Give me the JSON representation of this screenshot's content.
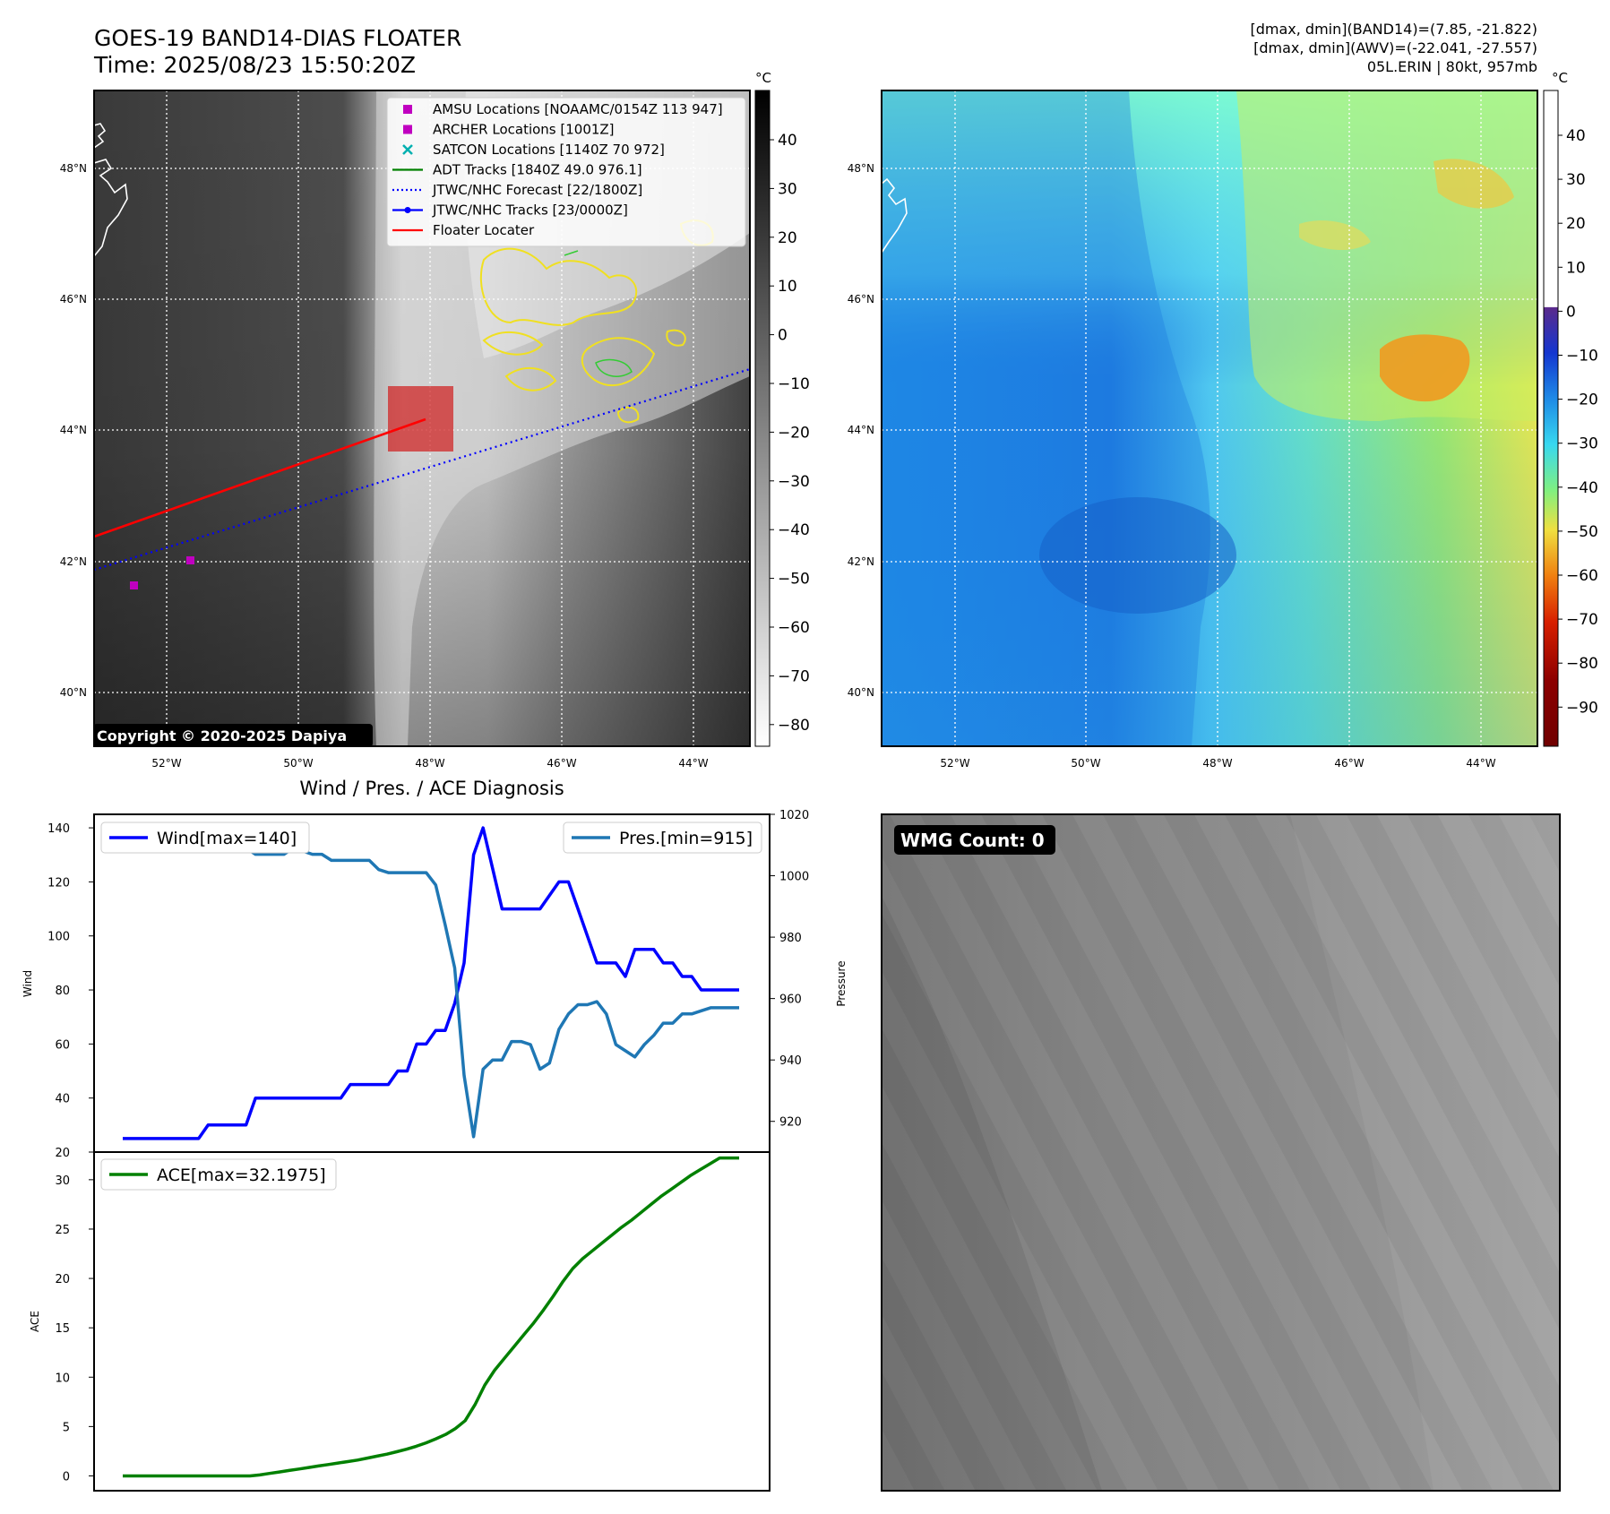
{
  "header": {
    "title_line1": "GOES-19 BAND14-DIAS FLOATER",
    "title_line2": "Time: 2025/08/23 15:50:20Z",
    "info_line1": "[dmax, dmin](BAND14)=(7.85, -21.822)",
    "info_line2": "[dmax, dmin](AWV)=(-22.041, -27.557)",
    "info_line3": "05L.ERIN | 80kt, 957mb"
  },
  "map_panel": {
    "lat_labels": [
      "48°N",
      "46°N",
      "44°N",
      "42°N",
      "40°N"
    ],
    "lon_labels": [
      "52°W",
      "50°W",
      "48°W",
      "46°W",
      "44°W"
    ],
    "copyright": "Copyright © 2020-2025 Dapiya",
    "legend": [
      {
        "label": "AMSU Locations [NOAAMC/0154Z 113 947]",
        "color": "#c000c0",
        "marker": "square"
      },
      {
        "label": "ARCHER Locations [1001Z]",
        "color": "#c000c0",
        "marker": "square"
      },
      {
        "label": "SATCON Locations [1140Z 70 972]",
        "color": "#00b0b0",
        "marker": "x"
      },
      {
        "label": "ADT Tracks [1840Z 49.0 976.1]",
        "color": "#008000",
        "marker": "line"
      },
      {
        "label": "JTWC/NHC Forecast [22/1800Z]",
        "color": "#0000ff",
        "marker": "dotted"
      },
      {
        "label": "JTWC/NHC Tracks [23/0000Z]",
        "color": "#0000ff",
        "marker": "line-dot"
      },
      {
        "label": "Floater Locater",
        "color": "#ff0000",
        "marker": "line"
      }
    ],
    "colorbar_unit": "°C",
    "colorbar_ticks": [
      "40",
      "30",
      "20",
      "10",
      "0",
      "−10",
      "−20",
      "−30",
      "−40",
      "−50",
      "−60",
      "−70",
      "−80"
    ]
  },
  "wv_panel": {
    "lat_labels": [
      "48°N",
      "46°N",
      "44°N",
      "42°N",
      "40°N"
    ],
    "lon_labels": [
      "52°W",
      "50°W",
      "48°W",
      "46°W",
      "44°W"
    ],
    "colorbar_unit": "°C",
    "colorbar_ticks": [
      "40",
      "30",
      "20",
      "10",
      "0",
      "−10",
      "−20",
      "−30",
      "−40",
      "−50",
      "−60",
      "−70",
      "−80",
      "−90"
    ]
  },
  "wmg_panel": {
    "badge": "WMG Count: 0"
  },
  "colors": {
    "wind": "#0000ff",
    "pressure": "#1f77b4",
    "ace": "#008000",
    "floater": "#ff0000"
  },
  "chart_data": [
    {
      "type": "line",
      "title": "Wind / Pres. / ACE Diagnosis",
      "ylabel": "Wind",
      "y2label": "Pressure",
      "ylim": [
        20,
        145
      ],
      "y2lim": [
        910,
        1020
      ],
      "yticks": [
        20,
        40,
        60,
        80,
        100,
        120,
        140
      ],
      "y2ticks": [
        920,
        940,
        960,
        980,
        1000,
        1020
      ],
      "grid": false,
      "legend_left": "top-left",
      "legend_right": "top-right",
      "series": [
        {
          "name": "Wind[max=140]",
          "axis": "left",
          "values": [
            25,
            25,
            25,
            25,
            25,
            25,
            25,
            25,
            25,
            30,
            30,
            30,
            30,
            30,
            40,
            40,
            40,
            40,
            40,
            40,
            40,
            40,
            40,
            40,
            45,
            45,
            45,
            45,
            45,
            50,
            50,
            60,
            60,
            65,
            65,
            75,
            90,
            130,
            140,
            125,
            110,
            110,
            110,
            110,
            110,
            115,
            120,
            120,
            110,
            100,
            90,
            90,
            90,
            85,
            95,
            95,
            95,
            90,
            90,
            85,
            85,
            80,
            80,
            80,
            80,
            80
          ]
        },
        {
          "name": "Pres.[min=915]",
          "axis": "right",
          "values": [
            1016,
            1016,
            1011,
            1010,
            1009,
            1009,
            1009,
            1009,
            1009,
            1009,
            1009,
            1009,
            1009,
            1009,
            1007,
            1007,
            1007,
            1007,
            1009,
            1008,
            1007,
            1007,
            1005,
            1005,
            1005,
            1005,
            1005,
            1002,
            1001,
            1001,
            1001,
            1001,
            1001,
            997,
            984,
            970,
            935,
            915,
            937,
            940,
            940,
            946,
            946,
            945,
            937,
            939,
            950,
            955,
            958,
            958,
            959,
            955,
            945,
            943,
            941,
            945,
            948,
            952,
            952,
            955,
            955,
            956,
            957,
            957,
            957,
            957
          ]
        }
      ]
    },
    {
      "type": "line",
      "ylabel": "ACE",
      "ylim": [
        -1.5,
        32.8
      ],
      "yticks": [
        0,
        5,
        10,
        15,
        20,
        25,
        30
      ],
      "grid": false,
      "legend": "top-left",
      "series": [
        {
          "name": "ACE[max=32.1975]",
          "values": [
            0,
            0,
            0,
            0,
            0,
            0,
            0,
            0,
            0,
            0,
            0,
            0,
            0,
            0,
            0.1,
            0.25,
            0.4,
            0.55,
            0.7,
            0.85,
            1.0,
            1.15,
            1.3,
            1.45,
            1.6,
            1.8,
            2.0,
            2.2,
            2.45,
            2.7,
            3.0,
            3.35,
            3.75,
            4.2,
            4.8,
            5.6,
            7.2,
            9.2,
            10.7,
            11.9,
            13.1,
            14.3,
            15.5,
            16.8,
            18.2,
            19.7,
            21.0,
            22.0,
            22.8,
            23.6,
            24.4,
            25.2,
            25.9,
            26.7,
            27.5,
            28.3,
            29.0,
            29.7,
            30.4,
            31.0,
            31.6,
            32.2,
            32.2,
            32.2
          ]
        }
      ]
    }
  ]
}
